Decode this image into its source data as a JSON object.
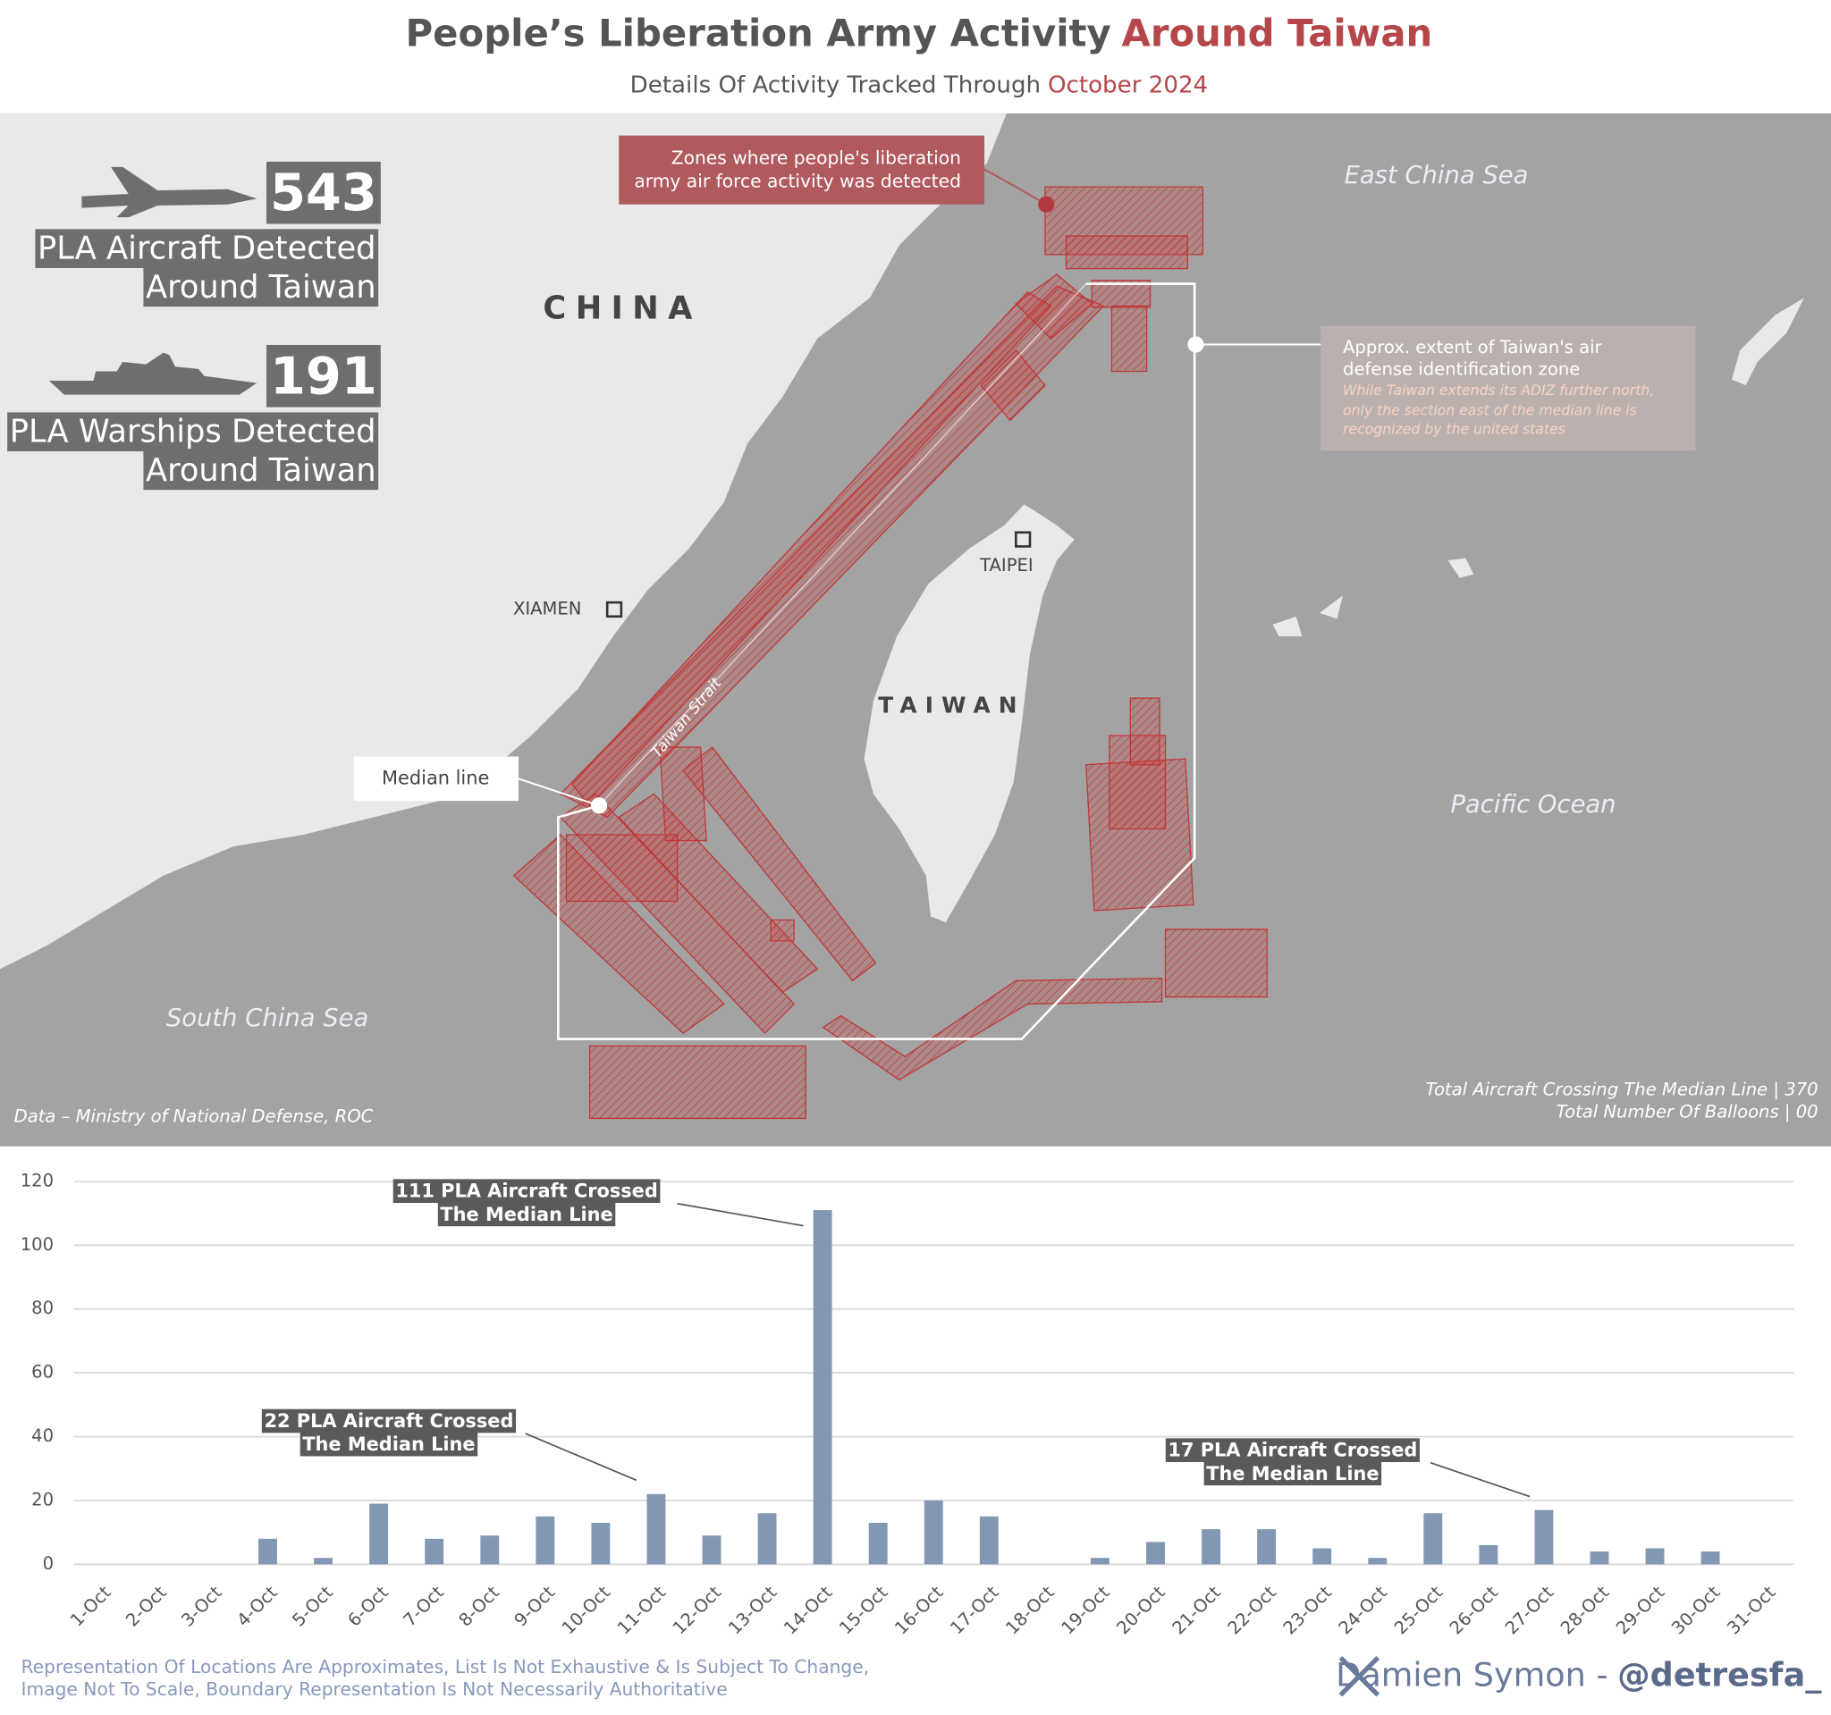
{
  "header": {
    "title_main": "People’s Liberation Army Activity",
    "title_highlight": "Around Taiwan",
    "subtitle_main": "Details Of Activity Tracked Through",
    "subtitle_highlight": "October 2024"
  },
  "stats": [
    {
      "value": 543,
      "label_lines": [
        "PLA Aircraft Detected",
        "Around Taiwan"
      ]
    },
    {
      "value": 191,
      "label_lines": [
        "PLA Warships Detected",
        "Around Taiwan"
      ]
    }
  ],
  "map": {
    "zones_callout": [
      "Zones where people's liberation",
      "army air force activity was detected"
    ],
    "adiz_lines": [
      "Approx. extent of Taiwan's air",
      "defense identification zone"
    ],
    "adiz_note_lines": [
      "While Taiwan extends its ADIZ further north,",
      "only the section east of the median line is",
      "recognized by the united states"
    ],
    "median_line": "Median line",
    "china": "CHINA",
    "taiwan": "TAIWAN",
    "xiamen": "XIAMEN",
    "taipei": "TAIPEI",
    "east_china_sea": "East China Sea",
    "pacific_ocean": "Pacific Ocean",
    "south_china_sea": "South China Sea",
    "taiwan_strait": "Taiwan Strait",
    "source": "Data – Ministry of National Defense, ROC",
    "totals": [
      "Total Aircraft Crossing The Median Line | 370",
      "Total Number Of Balloons | 00"
    ]
  },
  "chart_data": {
    "type": "bar",
    "categories": [
      "1-Oct",
      "2-Oct",
      "3-Oct",
      "4-Oct",
      "5-Oct",
      "6-Oct",
      "7-Oct",
      "8-Oct",
      "9-Oct",
      "10-Oct",
      "11-Oct",
      "12-Oct",
      "13-Oct",
      "14-Oct",
      "15-Oct",
      "16-Oct",
      "17-Oct",
      "18-Oct",
      "19-Oct",
      "20-Oct",
      "21-Oct",
      "22-Oct",
      "23-Oct",
      "24-Oct",
      "25-Oct",
      "26-Oct",
      "27-Oct",
      "28-Oct",
      "29-Oct",
      "30-Oct",
      "31-Oct"
    ],
    "values": [
      0,
      0,
      0,
      8,
      2,
      19,
      8,
      9,
      15,
      13,
      22,
      9,
      16,
      111,
      13,
      20,
      15,
      0,
      2,
      7,
      11,
      11,
      5,
      2,
      16,
      6,
      17,
      4,
      5,
      4,
      0
    ],
    "color": "#8297b3",
    "ylim": [
      0,
      120
    ],
    "yticks": [
      0,
      20,
      40,
      60,
      80,
      100,
      120
    ],
    "grid": true,
    "annotations": [
      {
        "lines": [
          "111 PLA Aircraft Crossed",
          "The Median Line"
        ]
      },
      {
        "lines": [
          "22 PLA Aircraft Crossed",
          "The Median Line"
        ]
      },
      {
        "lines": [
          "17 PLA Aircraft Crossed",
          "The Median Line"
        ]
      }
    ]
  },
  "footer": {
    "disclaimer": [
      "Representation Of Locations Are Approximates, List Is Not Exhaustive & Is Subject To Change,",
      "Image Not To Scale, Boundary Representation Is Not Necessarily Authoritative"
    ],
    "author": "Damien Symon -",
    "handle": "@detresfa_"
  }
}
